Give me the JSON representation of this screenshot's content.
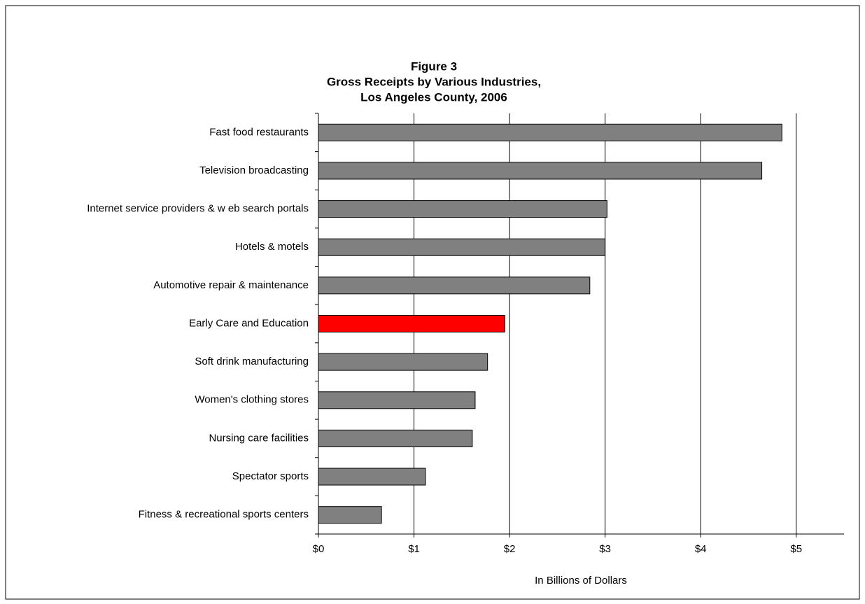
{
  "chart_data": {
    "type": "hbar",
    "title_lines": [
      "Figure 3",
      "Gross Receipts by Various Industries,",
      "Los Angeles County, 2006"
    ],
    "x_label": "In Billions of Dollars",
    "categories": [
      "Fast food restaurants",
      "Television broadcasting",
      "Internet service providers & w eb search portals",
      "Hotels & motels",
      "Automotive repair & maintenance",
      "Early Care and Education",
      "Soft drink manufacturing",
      "Women's clothing stores",
      "Nursing care facilities",
      "Spectator sports",
      "Fitness & recreational sports centers"
    ],
    "values": [
      4.85,
      4.64,
      3.02,
      3.0,
      2.84,
      1.95,
      1.77,
      1.64,
      1.61,
      1.12,
      0.66
    ],
    "colors": [
      "#808080",
      "#808080",
      "#808080",
      "#808080",
      "#808080",
      "#ff0000",
      "#808080",
      "#808080",
      "#808080",
      "#808080",
      "#808080"
    ],
    "xlim": [
      0,
      5.5
    ],
    "xticks": [
      {
        "value": 0,
        "label": "$0"
      },
      {
        "value": 1,
        "label": "$1"
      },
      {
        "value": 2,
        "label": "$2"
      },
      {
        "value": 3,
        "label": "$3"
      },
      {
        "value": 4,
        "label": "$4"
      },
      {
        "value": 5,
        "label": "$5"
      }
    ],
    "grid": true
  }
}
